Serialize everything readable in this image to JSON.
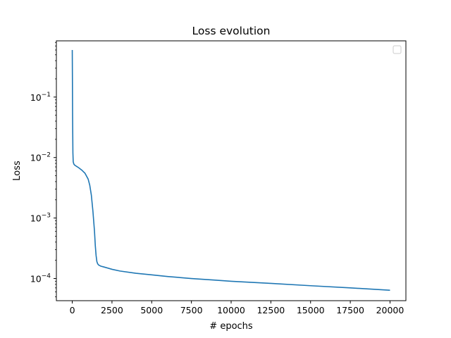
{
  "chart_data": {
    "type": "line",
    "title": "Loss evolution",
    "xlabel": "# epochs",
    "ylabel": "Loss",
    "xscale": "linear",
    "yscale": "log",
    "xlim": [
      -1000,
      21000
    ],
    "ylim": [
      4.3e-05,
      0.85
    ],
    "xticks": [
      0,
      2500,
      5000,
      7500,
      10000,
      12500,
      15000,
      17500,
      20000
    ],
    "xtick_labels": [
      "0",
      "2500",
      "5000",
      "7500",
      "10000",
      "12500",
      "15000",
      "17500",
      "20000"
    ],
    "ytick_major": [
      0.0001,
      0.001,
      0.01,
      0.1
    ],
    "ytick_labels": [
      {
        "mantissa": "10",
        "exponent": "−4"
      },
      {
        "mantissa": "10",
        "exponent": "−3"
      },
      {
        "mantissa": "10",
        "exponent": "−2"
      },
      {
        "mantissa": "10",
        "exponent": "−1"
      }
    ],
    "grid": false,
    "legend": {
      "position": "top-right",
      "entries": []
    },
    "series": [
      {
        "color": "#1f77b4",
        "x": [
          0,
          10,
          20,
          40,
          60,
          100,
          150,
          250,
          400,
          600,
          800,
          1000,
          1100,
          1200,
          1300,
          1400,
          1450,
          1500,
          1550,
          1600,
          1650,
          1700,
          1800,
          2000,
          2500,
          3000,
          4000,
          5000,
          6000,
          7500,
          9000,
          10000,
          12500,
          15000,
          17500,
          20000
        ],
        "y": [
          0.6,
          0.2,
          0.05,
          0.012,
          0.0085,
          0.0078,
          0.0075,
          0.0072,
          0.0068,
          0.0062,
          0.0055,
          0.0044,
          0.0035,
          0.0024,
          0.0013,
          0.0006,
          0.00035,
          0.00024,
          0.00019,
          0.000175,
          0.000168,
          0.000165,
          0.00016,
          0.000155,
          0.000142,
          0.000133,
          0.000122,
          0.000115,
          0.000108,
          0.0001,
          9.4e-05,
          9e-05,
          8.3e-05,
          7.6e-05,
          7e-05,
          6.4e-05
        ]
      }
    ]
  }
}
